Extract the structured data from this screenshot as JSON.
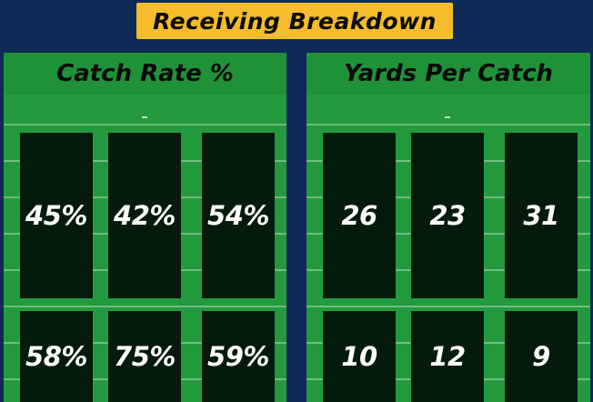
{
  "title": "Receiving Breakdown",
  "panels": [
    {
      "title": "Catch Rate %",
      "values": [
        "45%",
        "42%",
        "54%",
        "58%",
        "75%",
        "59%"
      ]
    },
    {
      "title": "Yards Per Catch",
      "values": [
        "26",
        "23",
        "31",
        "10",
        "12",
        "9"
      ]
    }
  ],
  "colors": {
    "background": "#0f2a57",
    "banner": "#f5bc2c",
    "field": "#239a3e",
    "tile": "#041b0c"
  }
}
